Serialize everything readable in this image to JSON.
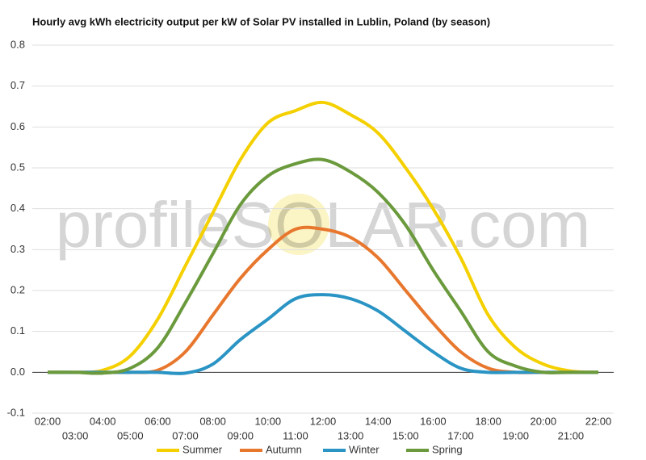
{
  "chart_data": {
    "type": "line",
    "title": "Hourly avg kWh electricity output per kW of Solar PV installed in Lublin, Poland (by season)",
    "watermark": "profileSOLAR.com",
    "categories": [
      "02:00",
      "03:00",
      "04:00",
      "05:00",
      "06:00",
      "07:00",
      "08:00",
      "09:00",
      "10:00",
      "11:00",
      "12:00",
      "13:00",
      "14:00",
      "15:00",
      "16:00",
      "17:00",
      "18:00",
      "19:00",
      "20:00",
      "21:00",
      "22:00"
    ],
    "series": [
      {
        "name": "Summer",
        "color": "#f5d000",
        "values": [
          0,
          0,
          0.005,
          0.04,
          0.13,
          0.26,
          0.39,
          0.52,
          0.61,
          0.64,
          0.66,
          0.63,
          0.585,
          0.5,
          0.4,
          0.28,
          0.14,
          0.06,
          0.02,
          0.003,
          0
        ]
      },
      {
        "name": "Autumn",
        "color": "#e8772e",
        "values": [
          0,
          0,
          0,
          0,
          0.005,
          0.05,
          0.14,
          0.23,
          0.3,
          0.35,
          0.35,
          0.33,
          0.28,
          0.2,
          0.12,
          0.05,
          0.01,
          0,
          0,
          0,
          0
        ]
      },
      {
        "name": "Winter",
        "color": "#2a94c4",
        "values": [
          0,
          0,
          0,
          0,
          0,
          -0.002,
          0.02,
          0.08,
          0.13,
          0.18,
          0.19,
          0.18,
          0.15,
          0.1,
          0.05,
          0.01,
          0,
          0,
          0,
          0,
          0
        ]
      },
      {
        "name": "Spring",
        "color": "#6a9a3c",
        "values": [
          0,
          0,
          -0.002,
          0.01,
          0.06,
          0.17,
          0.29,
          0.41,
          0.48,
          0.51,
          0.52,
          0.49,
          0.44,
          0.36,
          0.25,
          0.15,
          0.05,
          0.015,
          0,
          0,
          0
        ]
      }
    ],
    "ylim": [
      -0.1,
      0.8
    ],
    "yticks": [
      -0.1,
      {
        "value": 0,
        "label": "0.0"
      },
      0.1,
      0.2,
      0.3,
      0.4,
      0.5,
      0.6,
      0.7,
      0.8
    ],
    "grid": true,
    "legend": "bottom"
  }
}
